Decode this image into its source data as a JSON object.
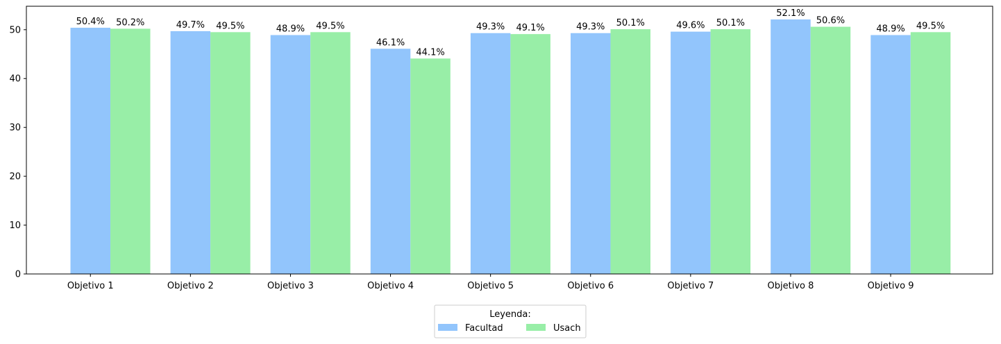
{
  "chart_data": {
    "type": "bar",
    "categories": [
      "Objetivo 1",
      "Objetivo 2",
      "Objetivo 3",
      "Objetivo 4",
      "Objetivo 5",
      "Objetivo 6",
      "Objetivo 7",
      "Objetivo 8",
      "Objetivo 9"
    ],
    "series": [
      {
        "name": "Facultad",
        "color": "#92c5fc",
        "values": [
          50.4,
          49.7,
          48.9,
          46.1,
          49.3,
          49.3,
          49.6,
          52.1,
          48.9
        ],
        "labels": [
          "50.4%",
          "49.7%",
          "48.9%",
          "46.1%",
          "49.3%",
          "49.3%",
          "49.6%",
          "52.1%",
          "48.9%"
        ]
      },
      {
        "name": "Usach",
        "color": "#98eea7",
        "values": [
          50.2,
          49.5,
          49.5,
          44.1,
          49.1,
          50.1,
          50.1,
          50.6,
          49.5
        ],
        "labels": [
          "50.2%",
          "49.5%",
          "49.5%",
          "44.1%",
          "49.1%",
          "50.1%",
          "50.1%",
          "50.6%",
          "49.5%"
        ]
      }
    ],
    "yticks": [
      0,
      10,
      20,
      30,
      40,
      50
    ],
    "ylim": [
      0,
      54.8
    ],
    "title": "",
    "xlabel": "",
    "ylabel": "",
    "legend": {
      "title": "Leyenda:",
      "placement": "bottom-center"
    },
    "grid": false
  }
}
